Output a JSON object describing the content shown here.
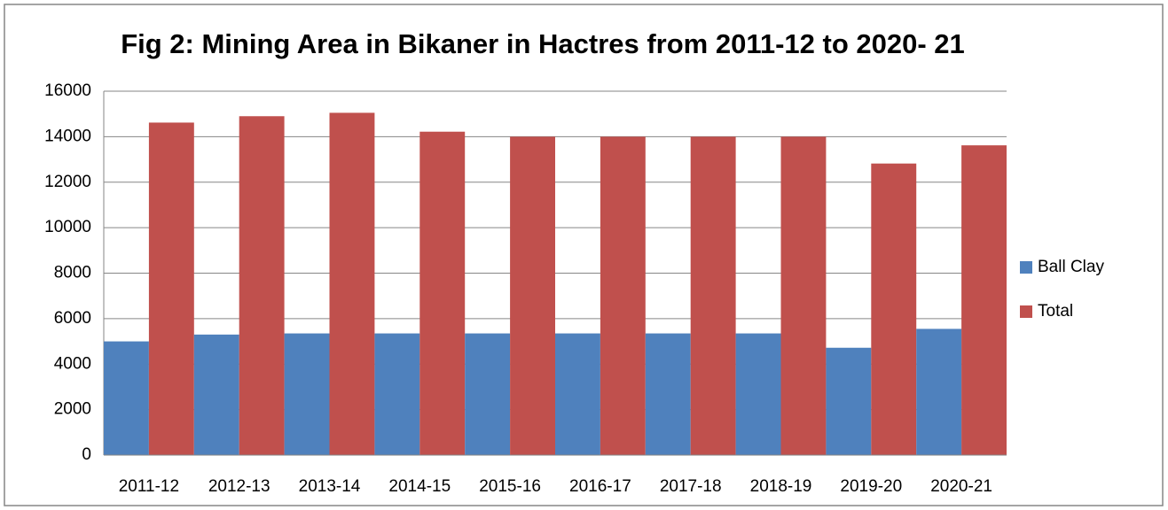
{
  "chart_data": {
    "type": "bar",
    "title": "Fig 2: Mining Area in Bikaner in Hactres from 2011-12 to 2020- 21",
    "categories": [
      "2011-12",
      "2012-13",
      "2013-14",
      "2014-15",
      "2015-16",
      "2016-17",
      "2017-18",
      "2018-19",
      "2019-20",
      "2020-21"
    ],
    "series": [
      {
        "name": "Ball Clay",
        "color": "#4f81bd",
        "values": [
          5000,
          5300,
          5350,
          5350,
          5350,
          5350,
          5350,
          5350,
          4720,
          5550
        ]
      },
      {
        "name": "Total",
        "color": "#c0504d",
        "values": [
          14620,
          14900,
          15050,
          14220,
          14000,
          14000,
          14000,
          14000,
          12820,
          13620
        ]
      }
    ],
    "ylim": [
      0,
      16000
    ],
    "yticks": [
      0,
      2000,
      4000,
      6000,
      8000,
      10000,
      12000,
      14000,
      16000
    ],
    "grid": true,
    "legend": "right"
  }
}
